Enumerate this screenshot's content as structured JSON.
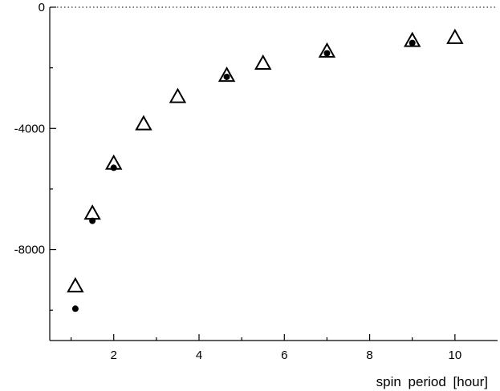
{
  "chart_data": {
    "type": "scatter",
    "title": "",
    "xlabel": "spin  period  [hour]",
    "ylabel": "",
    "xlim": [
      0.5,
      11
    ],
    "ylim": [
      -11000,
      0
    ],
    "x_ticks": [
      2,
      4,
      6,
      8,
      10
    ],
    "x_minor_ticks": [
      1,
      3,
      5,
      7,
      9
    ],
    "y_ticks": [
      0,
      -4000,
      -8000
    ],
    "y_tick_labels": [
      "0",
      "-4000",
      "-8000"
    ],
    "y_minor_ticks": [
      -2000,
      -6000,
      -10000
    ],
    "reference_line": {
      "y": 0,
      "style": "dotted"
    },
    "grid": false,
    "legend": "none",
    "series": [
      {
        "marker": "open-triangle",
        "color": "#000000",
        "points": [
          {
            "x": 1.1,
            "y": -9200
          },
          {
            "x": 1.5,
            "y": -6800
          },
          {
            "x": 2.0,
            "y": -5150
          },
          {
            "x": 2.7,
            "y": -3850
          },
          {
            "x": 3.5,
            "y": -2950
          },
          {
            "x": 4.65,
            "y": -2250
          },
          {
            "x": 5.5,
            "y": -1850
          },
          {
            "x": 7.0,
            "y": -1450
          },
          {
            "x": 9.0,
            "y": -1100
          },
          {
            "x": 10.0,
            "y": -1000
          }
        ]
      },
      {
        "marker": "filled-circle",
        "color": "#000000",
        "points": [
          {
            "x": 1.1,
            "y": -9950
          },
          {
            "x": 1.5,
            "y": -7050
          },
          {
            "x": 2.0,
            "y": -5300
          },
          {
            "x": 4.65,
            "y": -2300
          },
          {
            "x": 7.0,
            "y": -1520
          },
          {
            "x": 9.0,
            "y": -1180
          }
        ]
      }
    ]
  }
}
